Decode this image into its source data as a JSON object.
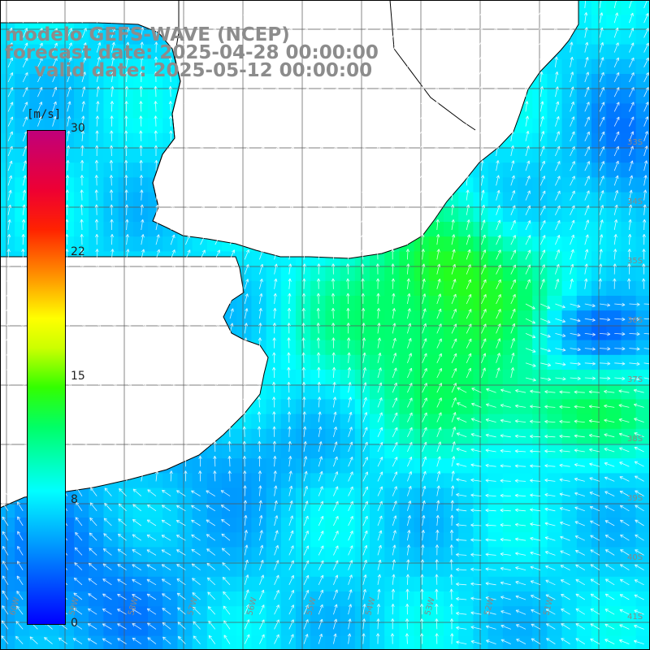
{
  "header": {
    "model": "modelo GEFS-WAVE (NCEP)",
    "forecast": "forecast date: 2025-04-28 00:00:00",
    "valid": "valid date: 2025-05-12 00:00:00"
  },
  "colorbar": {
    "unit": "[m/s]",
    "ticks": [
      "30",
      "22",
      "15",
      "8",
      "0"
    ],
    "min": 0,
    "max": 30,
    "colors": [
      "#0000ff",
      "#0099ff",
      "#00ffff",
      "#00ff66",
      "#33ff00",
      "#ccff00",
      "#ffff00",
      "#ff9900",
      "#ff2200",
      "#ee0033",
      "#c0007a"
    ]
  },
  "map": {
    "type": "wind-vector-field",
    "quantity": "wind speed",
    "land_color": "#ffffff",
    "grid": true,
    "lon_labels": [
      "60W",
      "59W",
      "58W",
      "57W",
      "56W",
      "55W",
      "54W",
      "53W",
      "52W",
      "51W"
    ],
    "lat_labels": [
      "33S",
      "34S",
      "35S",
      "36S",
      "37S",
      "38S",
      "39S",
      "40S",
      "41S"
    ]
  }
}
